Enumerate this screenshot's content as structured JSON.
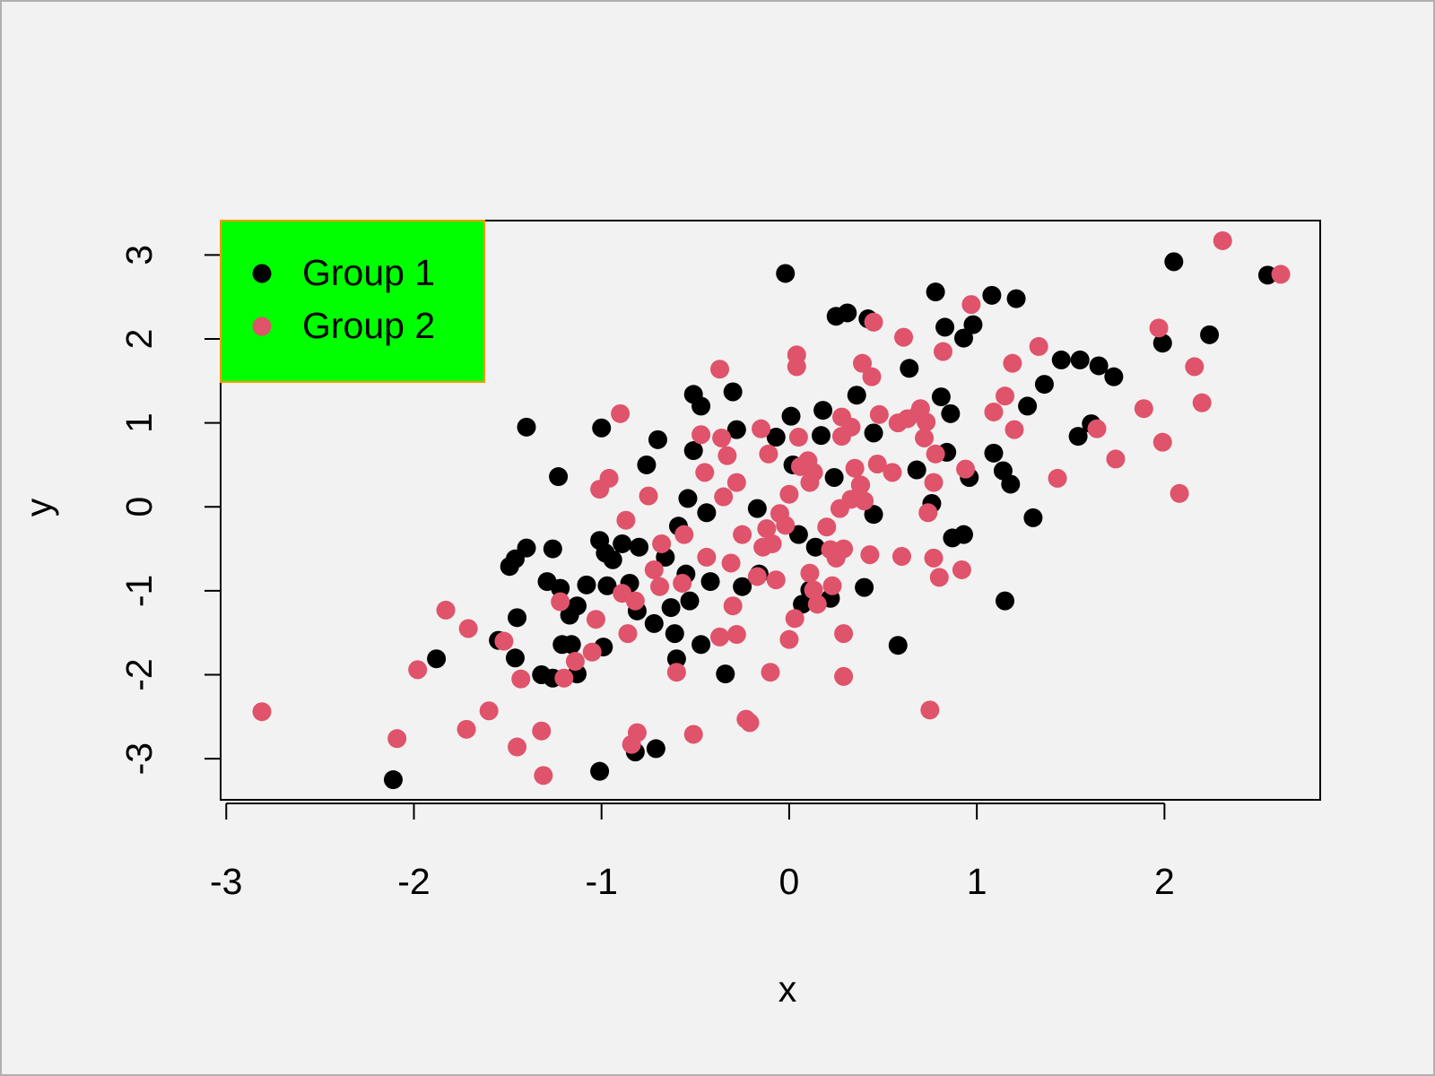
{
  "chart_data": {
    "type": "scatter",
    "x_label": "x",
    "y_label": "y",
    "xlim": [
      -3.03,
      2.83
    ],
    "ylim": [
      -3.49,
      3.41
    ],
    "xticks": [
      -3,
      -2,
      -1,
      0,
      1,
      2
    ],
    "yticks": [
      -3,
      -2,
      -1,
      0,
      1,
      2,
      3
    ],
    "legend_position": "topleft",
    "legend_background": "#00ff00",
    "legend_border": "#ff9900",
    "series": [
      {
        "name": "Group 1",
        "color": "#000000",
        "x": [
          -1.4,
          -1.23,
          -1.0,
          -0.02,
          2.05,
          2.55,
          2.24,
          1.99,
          0.78,
          1.08,
          1.21,
          0.25,
          0.31,
          0.42,
          0.83,
          0.98,
          0.93,
          1.45,
          1.55,
          1.65,
          1.73,
          1.36,
          1.27,
          0.64,
          0.36,
          0.81,
          0.86,
          0.18,
          0.01,
          -0.51,
          -0.47,
          -0.3,
          -0.28,
          -0.7,
          -0.76,
          -0.51,
          -0.07,
          1.61,
          1.54,
          1.09,
          1.14,
          1.18,
          0.96,
          0.68,
          0.24,
          0.02,
          0.45,
          1.3,
          0.87,
          0.93,
          0.45,
          0.05,
          0.14,
          -0.17,
          -0.54,
          -0.59,
          -0.44,
          1.15,
          0.58,
          0.4,
          0.22,
          0.11,
          0.07,
          -0.25,
          -0.16,
          -0.42,
          -0.55,
          -0.66,
          -0.8,
          -0.89,
          -0.98,
          -1.01,
          -0.94,
          -1.26,
          -1.4,
          -1.46,
          -1.49,
          -1.29,
          -1.22,
          -1.08,
          -0.97,
          -0.85,
          -1.13,
          -1.17,
          -1.45,
          -0.81,
          -0.72,
          -0.63,
          -0.53,
          -0.61,
          -0.47,
          -0.6,
          -0.34,
          -1.21,
          -1.16,
          -1.55,
          -1.46,
          -1.88,
          -1.32,
          -1.26,
          -1.13,
          -0.99,
          -2.11,
          -1.01,
          -0.82,
          -0.71,
          0.76,
          0.17,
          0.38,
          0.84
        ],
        "y": [
          0.95,
          0.36,
          0.94,
          2.78,
          2.92,
          2.76,
          2.05,
          1.95,
          2.56,
          2.52,
          2.48,
          2.27,
          2.31,
          2.24,
          2.14,
          2.17,
          2.01,
          1.75,
          1.75,
          1.68,
          1.55,
          1.46,
          1.2,
          1.65,
          1.33,
          1.31,
          1.11,
          1.15,
          1.08,
          1.34,
          1.2,
          1.37,
          0.92,
          0.8,
          0.5,
          0.67,
          0.83,
          0.99,
          0.84,
          0.64,
          0.43,
          0.27,
          0.35,
          0.44,
          0.35,
          0.5,
          0.88,
          -0.13,
          -0.37,
          -0.33,
          -0.09,
          -0.33,
          -0.48,
          -0.02,
          0.1,
          -0.23,
          -0.07,
          -1.12,
          -1.65,
          -0.96,
          -1.09,
          -0.99,
          -1.16,
          -0.95,
          -0.8,
          -0.89,
          -0.8,
          -0.6,
          -0.48,
          -0.44,
          -0.55,
          -0.4,
          -0.63,
          -0.5,
          -0.49,
          -0.62,
          -0.71,
          -0.89,
          -0.97,
          -0.93,
          -0.94,
          -0.91,
          -1.18,
          -1.29,
          -1.32,
          -1.24,
          -1.39,
          -1.2,
          -1.12,
          -1.51,
          -1.64,
          -1.81,
          -1.99,
          -1.64,
          -1.64,
          -1.59,
          -1.8,
          -1.81,
          -2.0,
          -2.04,
          -1.99,
          -1.67,
          -3.25,
          -3.15,
          -2.92,
          -2.88,
          0.04,
          0.85,
          0.26,
          0.65
        ]
      },
      {
        "name": "Group 2",
        "color": "#df536b",
        "x": [
          -2.81,
          -2.09,
          -1.98,
          -1.83,
          -1.72,
          -1.71,
          -1.6,
          -1.52,
          -1.45,
          -1.43,
          -1.32,
          -1.31,
          -1.22,
          -1.2,
          -1.14,
          -1.05,
          -1.03,
          -1.01,
          -0.96,
          -0.9,
          -0.87,
          -0.89,
          -0.86,
          -0.82,
          -0.84,
          -0.81,
          -0.75,
          -0.72,
          -0.68,
          -0.69,
          -0.6,
          -0.57,
          -0.56,
          -0.51,
          -0.47,
          -0.45,
          -0.44,
          -0.37,
          -0.37,
          -0.36,
          -0.35,
          -0.33,
          -0.31,
          -0.3,
          -0.28,
          -0.28,
          -0.25,
          -0.23,
          -0.21,
          -0.17,
          -0.15,
          -0.14,
          -0.12,
          -0.1,
          -0.11,
          -0.09,
          -0.07,
          -0.05,
          -0.02,
          0.0,
          0.0,
          0.03,
          0.04,
          0.04,
          0.05,
          0.06,
          0.1,
          0.11,
          0.11,
          0.13,
          0.15,
          0.13,
          0.2,
          0.22,
          0.23,
          0.25,
          0.27,
          0.28,
          0.28,
          0.29,
          0.29,
          0.29,
          0.33,
          0.33,
          0.35,
          0.38,
          0.39,
          0.4,
          0.43,
          0.44,
          0.45,
          0.47,
          0.48,
          0.55,
          0.58,
          0.6,
          0.61,
          0.63,
          0.69,
          0.7,
          0.72,
          0.73,
          0.74,
          0.75,
          0.77,
          0.77,
          0.78,
          0.8,
          0.82,
          0.92,
          0.94,
          0.97,
          1.09,
          1.15,
          1.2,
          1.19,
          1.33,
          1.43,
          1.64,
          1.74,
          1.89,
          1.97,
          1.99,
          2.08,
          2.16,
          2.2,
          2.31,
          2.62
        ],
        "y": [
          -2.44,
          -2.76,
          -1.94,
          -1.23,
          -2.65,
          -1.45,
          -2.43,
          -1.6,
          -2.86,
          -2.05,
          -2.67,
          -3.2,
          -1.13,
          -2.04,
          -1.84,
          -1.73,
          -1.34,
          0.21,
          0.34,
          1.11,
          -0.16,
          -1.03,
          -1.51,
          -1.12,
          -2.83,
          -2.69,
          0.13,
          -0.75,
          -0.44,
          -0.95,
          -1.97,
          -0.91,
          -0.33,
          -2.71,
          0.86,
          0.41,
          -0.6,
          1.64,
          -1.55,
          0.82,
          0.12,
          0.61,
          -0.67,
          -1.18,
          -1.52,
          0.29,
          -0.33,
          -2.53,
          -2.57,
          -0.83,
          0.93,
          -0.48,
          -0.26,
          -1.97,
          0.63,
          -0.44,
          -0.87,
          -0.08,
          -0.22,
          -1.58,
          0.15,
          -1.33,
          1.81,
          1.67,
          0.83,
          0.48,
          0.55,
          0.29,
          -0.79,
          0.41,
          -1.16,
          -0.99,
          -0.24,
          -0.51,
          -0.94,
          -0.61,
          -0.02,
          1.07,
          0.84,
          -2.02,
          -1.51,
          -0.5,
          0.09,
          0.95,
          0.46,
          0.26,
          1.71,
          0.07,
          -0.57,
          1.55,
          2.2,
          0.51,
          1.1,
          0.41,
          1.0,
          -0.59,
          2.02,
          1.05,
          1.11,
          1.17,
          0.82,
          1.01,
          -0.07,
          -2.42,
          -0.61,
          0.29,
          0.63,
          -0.84,
          1.85,
          -0.75,
          0.45,
          2.41,
          1.13,
          1.32,
          0.92,
          1.71,
          1.91,
          0.34,
          0.93,
          0.57,
          1.17,
          2.13,
          0.77,
          0.16,
          1.67,
          1.24,
          3.17,
          2.77
        ]
      }
    ]
  }
}
